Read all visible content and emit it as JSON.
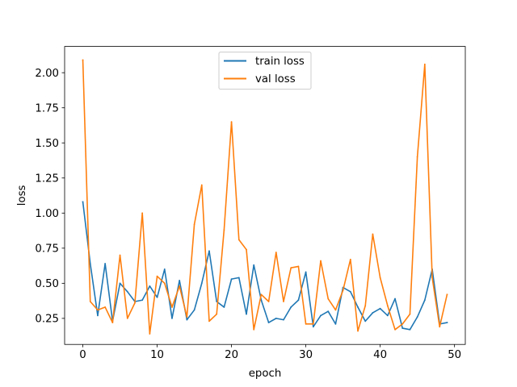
{
  "chart_data": {
    "type": "line",
    "title": "",
    "xlabel": "epoch",
    "ylabel": "loss",
    "xlim": [
      -2.45,
      51.45
    ],
    "ylim": [
      0.0644,
      2.1871
    ],
    "x_ticks": [
      0,
      10,
      20,
      30,
      40,
      50
    ],
    "x_tick_labels": [
      "0",
      "10",
      "20",
      "30",
      "40",
      "50"
    ],
    "y_ticks": [
      0.25,
      0.5,
      0.75,
      1.0,
      1.25,
      1.5,
      1.75,
      2.0
    ],
    "y_tick_labels": [
      "0.25",
      "0.50",
      "0.75",
      "1.00",
      "1.25",
      "1.50",
      "1.75",
      "2.00"
    ],
    "grid": false,
    "legend_position": "top-center",
    "x": [
      0,
      1,
      2,
      3,
      4,
      5,
      6,
      7,
      8,
      9,
      10,
      11,
      12,
      13,
      14,
      15,
      16,
      17,
      18,
      19,
      20,
      21,
      22,
      23,
      24,
      25,
      26,
      27,
      28,
      29,
      30,
      31,
      32,
      33,
      34,
      35,
      36,
      37,
      38,
      39,
      40,
      41,
      42,
      43,
      44,
      45,
      46,
      47,
      48,
      49
    ],
    "series": [
      {
        "name": "train loss",
        "color": "#1f77b4",
        "values": [
          1.08,
          0.64,
          0.27,
          0.64,
          0.23,
          0.5,
          0.44,
          0.37,
          0.38,
          0.48,
          0.4,
          0.6,
          0.25,
          0.52,
          0.24,
          0.31,
          0.5,
          0.73,
          0.37,
          0.33,
          0.53,
          0.54,
          0.28,
          0.63,
          0.38,
          0.22,
          0.25,
          0.24,
          0.33,
          0.38,
          0.58,
          0.19,
          0.27,
          0.3,
          0.21,
          0.47,
          0.44,
          0.33,
          0.23,
          0.29,
          0.32,
          0.27,
          0.39,
          0.18,
          0.17,
          0.26,
          0.38,
          0.6,
          0.21,
          0.22
        ]
      },
      {
        "name": "val loss",
        "color": "#ff7f0e",
        "values": [
          2.09,
          0.37,
          0.31,
          0.33,
          0.22,
          0.7,
          0.25,
          0.36,
          1.0,
          0.14,
          0.55,
          0.5,
          0.33,
          0.48,
          0.26,
          0.92,
          1.2,
          0.23,
          0.28,
          0.88,
          1.65,
          0.81,
          0.74,
          0.17,
          0.42,
          0.37,
          0.72,
          0.37,
          0.61,
          0.62,
          0.21,
          0.21,
          0.66,
          0.39,
          0.31,
          0.45,
          0.67,
          0.16,
          0.34,
          0.85,
          0.54,
          0.34,
          0.17,
          0.21,
          0.28,
          1.4,
          2.06,
          0.54,
          0.19,
          0.42
        ]
      }
    ]
  }
}
